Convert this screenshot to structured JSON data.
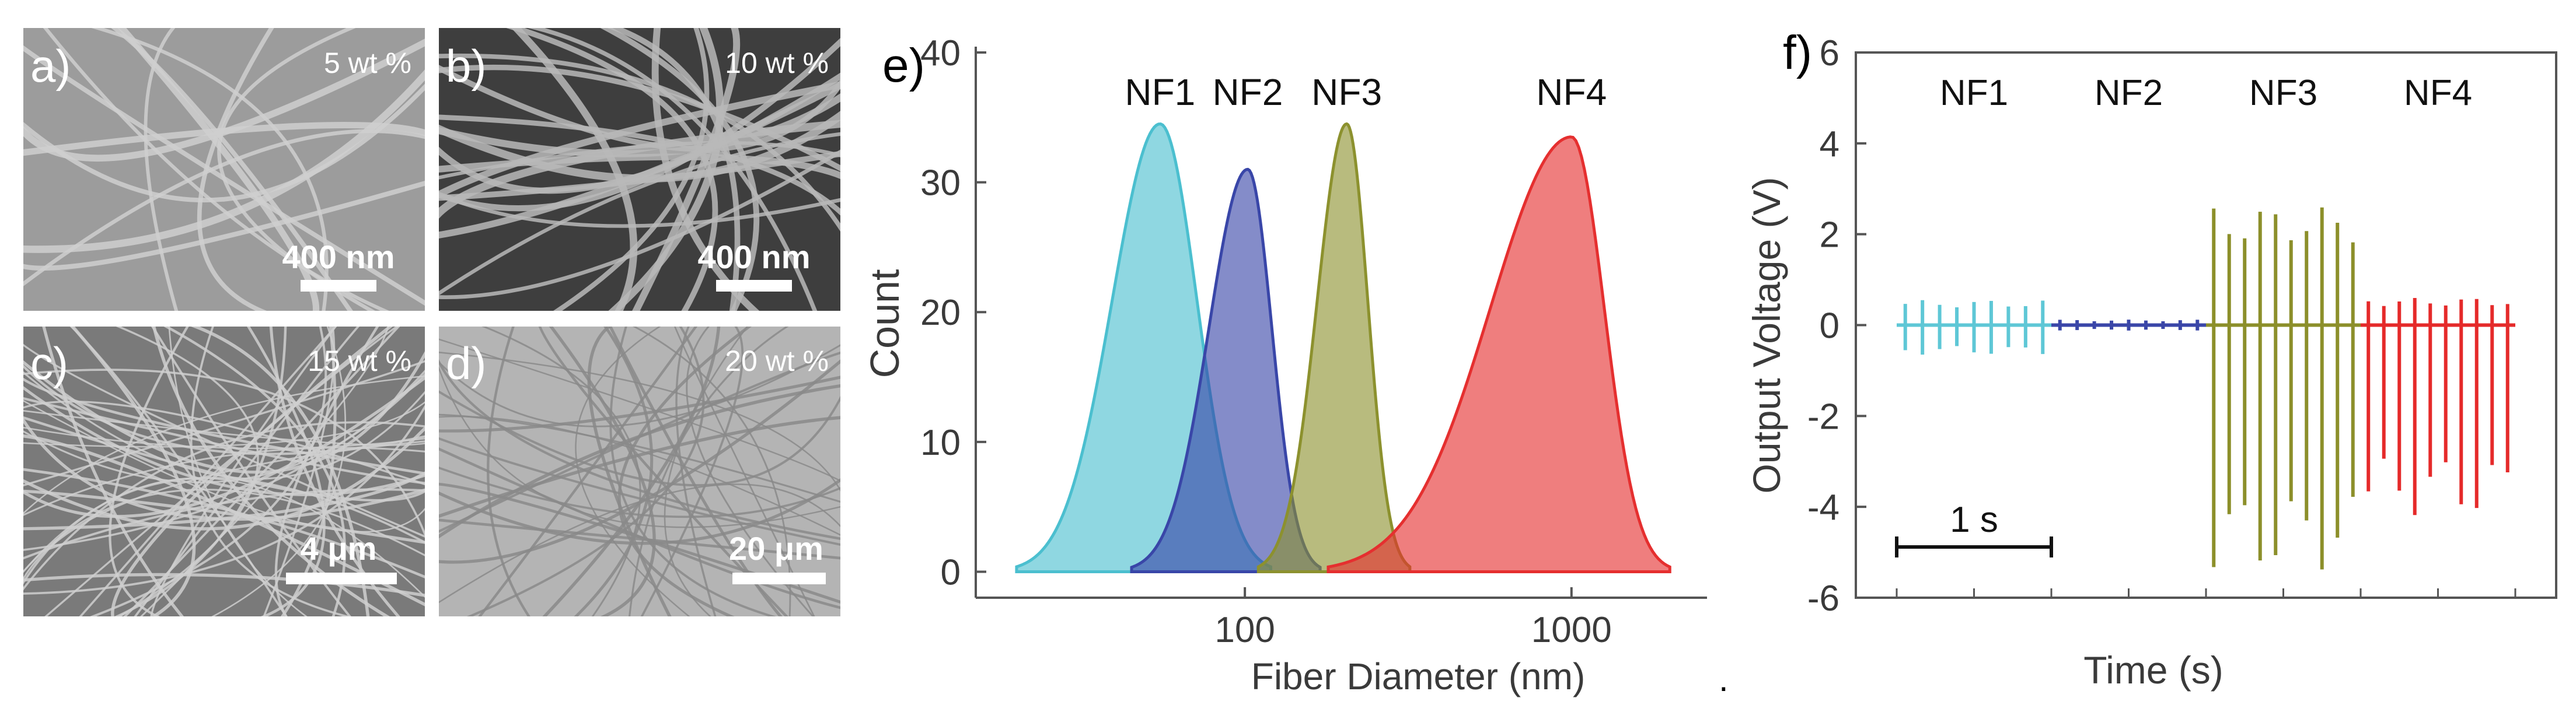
{
  "sem_panels": [
    {
      "letter": "a)",
      "concentration": "5 wt %",
      "scale_bar": "400 nm",
      "tone": "#9c9c9c"
    },
    {
      "letter": "b)",
      "concentration": "10 wt %",
      "scale_bar": "400 nm",
      "tone": "#3e3e3e"
    },
    {
      "letter": "c)",
      "concentration": "15 wt %",
      "scale_bar": "4 μm",
      "tone": "#7a7a7a"
    },
    {
      "letter": "d)",
      "concentration": "20 wt %",
      "scale_bar": "20 μm",
      "tone": "#b4b4b4"
    }
  ],
  "chart_data": [
    {
      "panel": "e)",
      "type": "area",
      "xlabel": "Fiber Diameter (nm)",
      "ylabel": "Count",
      "x_scale": "log",
      "xlim": [
        15,
        2600
      ],
      "ylim": [
        -2,
        40
      ],
      "x_ticks": [
        100,
        1000
      ],
      "x_tick_labels": [
        "100",
        "1000"
      ],
      "y_ticks": [
        0,
        10,
        20,
        30,
        40
      ],
      "y_tick_labels": [
        "0",
        "10",
        "20",
        "30",
        "40"
      ],
      "series": [
        {
          "name": "NF1",
          "peak_x": 55,
          "peak": 34.5,
          "range": [
            20,
            120
          ],
          "color": "#4bbfcf"
        },
        {
          "name": "NF2",
          "peak_x": 102,
          "peak": 31.0,
          "range": [
            45,
            170
          ],
          "color": "#3946a8"
        },
        {
          "name": "NF3",
          "peak_x": 205,
          "peak": 34.5,
          "range": [
            110,
            320
          ],
          "color": "#8c912e"
        },
        {
          "name": "NF4",
          "peak_x": 1000,
          "peak": 33.5,
          "range": [
            180,
            2000
          ],
          "color": "#e52f2f"
        }
      ]
    },
    {
      "panel": "f)",
      "type": "line",
      "xlabel": "Time (s)",
      "ylabel": "Output Voltage (V)",
      "ylim": [
        -6,
        6
      ],
      "y_ticks": [
        -6,
        -4,
        -2,
        0,
        2,
        4,
        6
      ],
      "y_tick_labels": [
        "-6",
        "-4",
        "-2",
        "0",
        "2",
        "4",
        "6"
      ],
      "xlim": [
        0,
        4
      ],
      "scale_bar": {
        "label": "1 s",
        "from": 0,
        "to": 1
      },
      "series": [
        {
          "name": "NF1",
          "t_range": [
            0,
            1
          ],
          "spikes": 9,
          "pos_amp": 0.55,
          "neg_amp": -0.65,
          "color": "#5ec7d6"
        },
        {
          "name": "NF2",
          "t_range": [
            1,
            2
          ],
          "spikes": 9,
          "pos_amp": 0.12,
          "neg_amp": -0.12,
          "color": "#3a46a8"
        },
        {
          "name": "NF3",
          "t_range": [
            2,
            3
          ],
          "spikes": 10,
          "pos_amp": 2.6,
          "neg_amp": -5.4,
          "color": "#8c8f2a"
        },
        {
          "name": "NF4",
          "t_range": [
            3,
            4
          ],
          "spikes": 10,
          "pos_amp": 0.6,
          "neg_amp": -4.2,
          "color": "#e52a2a"
        }
      ]
    }
  ]
}
